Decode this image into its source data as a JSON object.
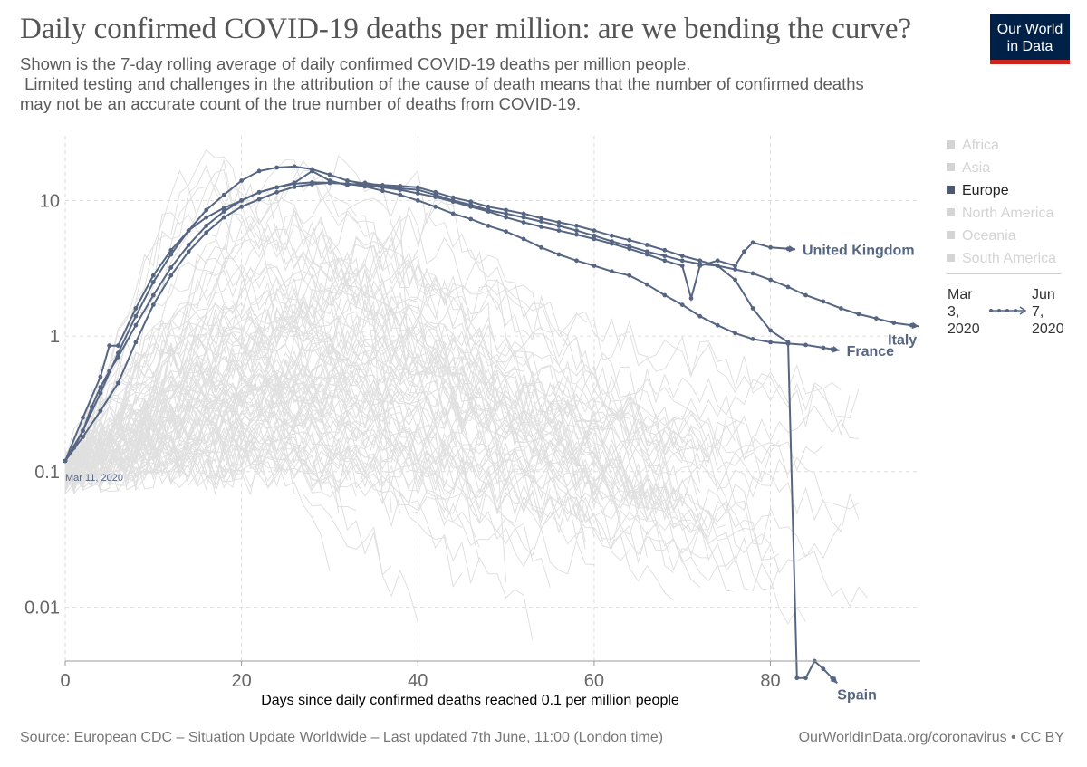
{
  "header": {
    "title": "Daily confirmed COVID-19 deaths per million: are we bending the curve?",
    "subtitle_lines": [
      "Shown is the 7-day rolling average of daily confirmed COVID-19 deaths per million people.",
      " Limited testing and challenges in the attribution of the cause of death means that the number of confirmed deaths",
      "may not be an accurate count of the true number of deaths from COVID-19."
    ],
    "logo_line1": "Our World",
    "logo_line2": "in Data"
  },
  "footer": {
    "source": "Source: European CDC – Situation Update Worldwide – Last updated 7th June, 11:00 (London time)",
    "credit": "OurWorldInData.org/coronavirus • CC BY"
  },
  "legend": {
    "items": [
      {
        "label": "Africa",
        "active": false
      },
      {
        "label": "Asia",
        "active": false
      },
      {
        "label": "Europe",
        "active": true
      },
      {
        "label": "North America",
        "active": false
      },
      {
        "label": "Oceania",
        "active": false
      },
      {
        "label": "South America",
        "active": false
      }
    ],
    "time_start": [
      "Mar",
      "3,",
      "2020"
    ],
    "time_end": [
      "Jun",
      "7,",
      "2020"
    ]
  },
  "colors": {
    "highlight": "#566682",
    "background_lines": "#e0e0e0",
    "grid": "#dddddd",
    "legend_active": "#4a5a75",
    "legend_inactive": "#d4d4d4"
  },
  "chart_data": {
    "type": "line",
    "xlabel": "Days since daily confirmed deaths reached 0.1 per million people",
    "ylabel": "",
    "y_scale": "log",
    "xlim": [
      0,
      97
    ],
    "ylim": [
      0.004,
      30
    ],
    "x_ticks": [
      0,
      20,
      40,
      60,
      80
    ],
    "y_ticks": [
      0.01,
      0.1,
      1,
      10
    ],
    "y_tick_labels": [
      "0.01",
      "0.1",
      "1",
      "10"
    ],
    "start_annotation": "Mar 11, 2020",
    "grid": true,
    "series": [
      {
        "name": "United Kingdom",
        "x": [
          0,
          1,
          2,
          3,
          4,
          5,
          6,
          8,
          10,
          12,
          14,
          16,
          18,
          20,
          22,
          24,
          26,
          28,
          30,
          32,
          34,
          36,
          38,
          40,
          42,
          44,
          46,
          48,
          50,
          52,
          54,
          56,
          58,
          60,
          62,
          64,
          66,
          68,
          70,
          71,
          72,
          74,
          76,
          77,
          78,
          80,
          82
        ],
        "y": [
          0.12,
          0.15,
          0.2,
          0.3,
          0.42,
          0.55,
          0.7,
          1.2,
          2.0,
          3.2,
          4.7,
          6.5,
          8.3,
          10.0,
          11.5,
          12.5,
          13.3,
          13.6,
          13.5,
          13.3,
          13.0,
          12.5,
          12.0,
          11.3,
          10.6,
          9.8,
          9.0,
          8.3,
          7.5,
          6.9,
          6.4,
          6.0,
          5.6,
          5.2,
          4.8,
          4.4,
          4.0,
          3.6,
          3.3,
          1.9,
          3.3,
          3.6,
          3.3,
          4.2,
          4.9,
          4.5,
          4.4
        ]
      },
      {
        "name": "Italy",
        "x": [
          0,
          2,
          4,
          6,
          8,
          10,
          12,
          14,
          16,
          18,
          20,
          22,
          24,
          26,
          28,
          30,
          32,
          34,
          36,
          38,
          40,
          42,
          44,
          46,
          48,
          50,
          52,
          54,
          56,
          58,
          60,
          62,
          64,
          66,
          68,
          70,
          72,
          74,
          76,
          78,
          80,
          82,
          84,
          86,
          88,
          90,
          92,
          94,
          96
        ],
        "y": [
          0.12,
          0.2,
          0.38,
          0.75,
          1.4,
          2.5,
          4.0,
          6.0,
          8.5,
          11.0,
          14.0,
          16.5,
          17.5,
          17.8,
          17.0,
          15.5,
          14.0,
          13.3,
          13.0,
          12.8,
          12.5,
          11.5,
          10.5,
          9.8,
          9.0,
          8.5,
          8.0,
          7.4,
          6.9,
          6.5,
          6.0,
          5.5,
          5.1,
          4.7,
          4.3,
          3.9,
          3.6,
          3.3,
          3.1,
          2.9,
          2.6,
          2.3,
          2.0,
          1.8,
          1.6,
          1.45,
          1.35,
          1.25,
          1.2
        ]
      },
      {
        "name": "France",
        "x": [
          0,
          2,
          4,
          6,
          8,
          10,
          12,
          14,
          16,
          18,
          20,
          22,
          24,
          26,
          28,
          30,
          32,
          34,
          36,
          38,
          40,
          42,
          44,
          46,
          48,
          50,
          52,
          54,
          56,
          58,
          60,
          62,
          64,
          66,
          68,
          70,
          72,
          74,
          76,
          78,
          80,
          82,
          84,
          86,
          87
        ],
        "y": [
          0.12,
          0.18,
          0.28,
          0.45,
          0.9,
          1.7,
          2.8,
          4.2,
          5.8,
          7.5,
          9.0,
          10.2,
          11.5,
          12.6,
          13.2,
          13.5,
          13.3,
          12.7,
          11.8,
          11.0,
          10.0,
          9.0,
          8.0,
          7.3,
          6.5,
          5.9,
          5.2,
          4.5,
          4.0,
          3.6,
          3.3,
          3.0,
          2.8,
          2.4,
          2.0,
          1.7,
          1.4,
          1.2,
          1.05,
          0.95,
          0.9,
          0.88,
          0.86,
          0.82,
          0.8
        ]
      },
      {
        "name": "Spain",
        "x": [
          0,
          2,
          4,
          5,
          6,
          8,
          10,
          12,
          14,
          16,
          18,
          20,
          22,
          24,
          26,
          28,
          30,
          32,
          34,
          36,
          38,
          40,
          42,
          44,
          46,
          48,
          50,
          52,
          54,
          56,
          58,
          60,
          62,
          64,
          66,
          68,
          70,
          72,
          74,
          76,
          78,
          80,
          82,
          83,
          84,
          85,
          86,
          87
        ],
        "y": [
          0.12,
          0.25,
          0.5,
          0.85,
          0.85,
          1.6,
          2.8,
          4.3,
          6.0,
          7.5,
          8.8,
          10.0,
          11.5,
          12.5,
          13.5,
          16.5,
          14.0,
          13.0,
          13.5,
          12.8,
          12.3,
          12.0,
          11.0,
          10.0,
          9.3,
          8.5,
          8.0,
          7.5,
          7.0,
          6.5,
          6.0,
          5.5,
          5.0,
          4.6,
          4.2,
          3.9,
          3.6,
          3.4,
          3.3,
          2.6,
          1.6,
          1.1,
          0.9,
          0.003,
          0.003,
          0.004,
          0.0035,
          0.003
        ]
      }
    ]
  }
}
